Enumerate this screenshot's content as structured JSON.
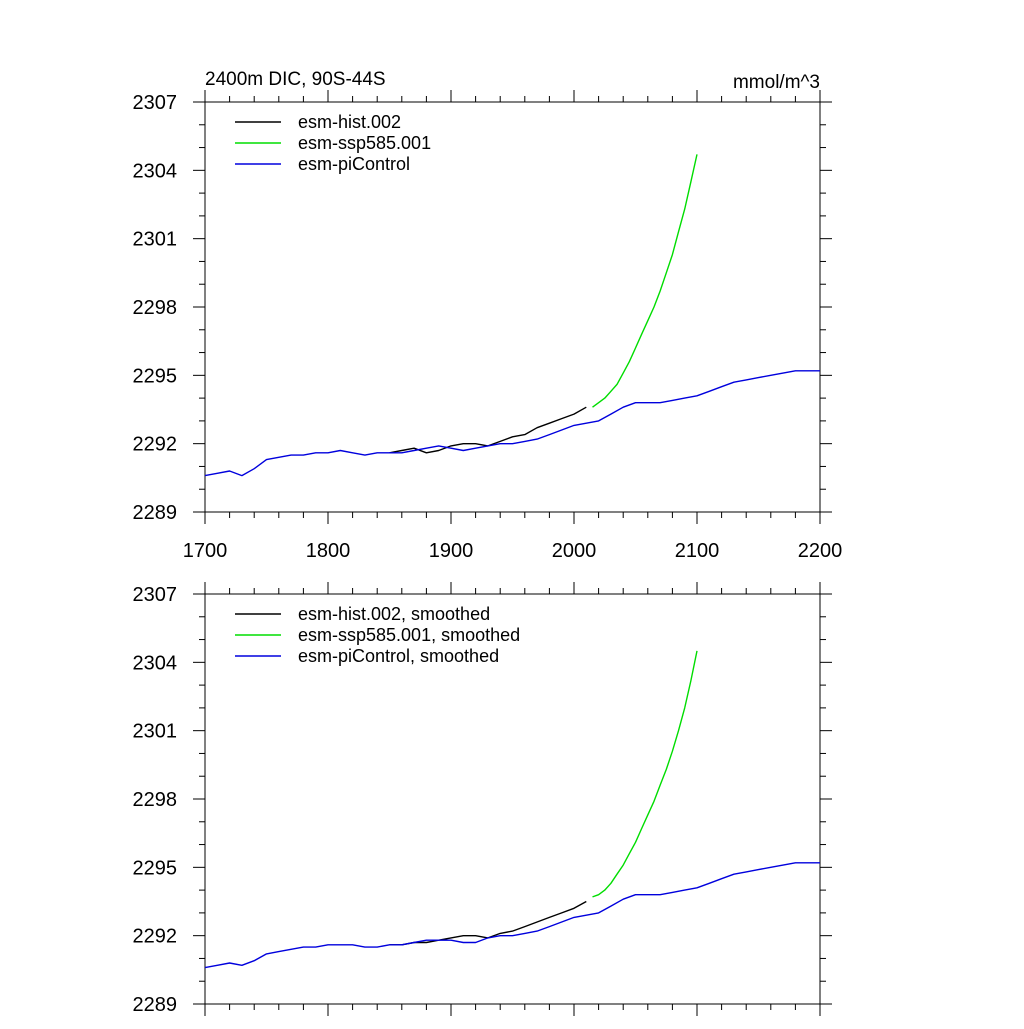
{
  "chart_data": [
    {
      "type": "line",
      "title": "2400m DIC, 90S-44S",
      "units": "mmol/m^3",
      "xlim": [
        1700,
        2200
      ],
      "ylim": [
        2289,
        2307
      ],
      "xticks": [
        1700,
        1800,
        1900,
        2000,
        2100,
        2200
      ],
      "xtick_labels": [
        "1700",
        "1800",
        "1900",
        "2000",
        "2100",
        "2200"
      ],
      "yticks": [
        2289,
        2292,
        2295,
        2298,
        2301,
        2304,
        2307
      ],
      "ytick_labels": [
        "2289",
        "2292",
        "2295",
        "2298",
        "2301",
        "2304",
        "2307"
      ],
      "legend_position": "top-left",
      "series": [
        {
          "name": "esm-hist.002",
          "color": "#000000",
          "x": [
            1850,
            1860,
            1870,
            1880,
            1890,
            1900,
            1910,
            1920,
            1930,
            1940,
            1950,
            1960,
            1970,
            1980,
            1990,
            2000,
            2010
          ],
          "y": [
            2291.6,
            2291.7,
            2291.8,
            2291.6,
            2291.7,
            2291.9,
            2292.0,
            2292.0,
            2291.9,
            2292.1,
            2292.3,
            2292.4,
            2292.7,
            2292.9,
            2293.1,
            2293.3,
            2293.6
          ]
        },
        {
          "name": "esm-ssp585.001",
          "color": "#00dd00",
          "x": [
            2015,
            2020,
            2025,
            2030,
            2035,
            2040,
            2045,
            2050,
            2055,
            2060,
            2065,
            2070,
            2075,
            2080,
            2085,
            2090,
            2095,
            2100
          ],
          "y": [
            2293.6,
            2293.8,
            2294.0,
            2294.3,
            2294.6,
            2295.1,
            2295.6,
            2296.2,
            2296.8,
            2297.4,
            2298.0,
            2298.7,
            2299.5,
            2300.3,
            2301.3,
            2302.3,
            2303.5,
            2304.7
          ]
        },
        {
          "name": "esm-piControl",
          "color": "#0000dd",
          "x": [
            1700,
            1710,
            1720,
            1730,
            1740,
            1750,
            1760,
            1770,
            1780,
            1790,
            1800,
            1810,
            1820,
            1830,
            1840,
            1850,
            1860,
            1870,
            1880,
            1890,
            1900,
            1910,
            1920,
            1930,
            1940,
            1950,
            1960,
            1970,
            1980,
            1990,
            2000,
            2010,
            2020,
            2030,
            2040,
            2050,
            2060,
            2070,
            2080,
            2090,
            2100,
            2110,
            2120,
            2130,
            2140,
            2150,
            2160,
            2170,
            2180,
            2190,
            2200
          ],
          "y": [
            2290.6,
            2290.7,
            2290.8,
            2290.6,
            2290.9,
            2291.3,
            2291.4,
            2291.5,
            2291.5,
            2291.6,
            2291.6,
            2291.7,
            2291.6,
            2291.5,
            2291.6,
            2291.6,
            2291.6,
            2291.7,
            2291.8,
            2291.9,
            2291.8,
            2291.7,
            2291.8,
            2291.9,
            2292.0,
            2292.0,
            2292.1,
            2292.2,
            2292.4,
            2292.6,
            2292.8,
            2292.9,
            2293.0,
            2293.3,
            2293.6,
            2293.8,
            2293.8,
            2293.8,
            2293.9,
            2294.0,
            2294.1,
            2294.3,
            2294.5,
            2294.7,
            2294.8,
            2294.9,
            2295.0,
            2295.1,
            2295.2,
            2295.2,
            2295.2
          ]
        }
      ]
    },
    {
      "type": "line",
      "title": "",
      "units": "",
      "xlim": [
        1700,
        2200
      ],
      "ylim": [
        2289,
        2307
      ],
      "xticks": [
        1700,
        1800,
        1900,
        2000,
        2100,
        2200
      ],
      "xtick_labels": [],
      "yticks": [
        2289,
        2292,
        2295,
        2298,
        2301,
        2304,
        2307
      ],
      "ytick_labels": [
        "2289",
        "2292",
        "2295",
        "2298",
        "2301",
        "2304",
        "2307"
      ],
      "legend_position": "top-left",
      "series": [
        {
          "name": "esm-hist.002, smoothed",
          "color": "#000000",
          "x": [
            1850,
            1860,
            1870,
            1880,
            1890,
            1900,
            1910,
            1920,
            1930,
            1940,
            1950,
            1960,
            1970,
            1980,
            1990,
            2000,
            2010
          ],
          "y": [
            2291.6,
            2291.6,
            2291.7,
            2291.7,
            2291.8,
            2291.9,
            2292.0,
            2292.0,
            2291.9,
            2292.1,
            2292.2,
            2292.4,
            2292.6,
            2292.8,
            2293.0,
            2293.2,
            2293.5
          ]
        },
        {
          "name": "esm-ssp585.001, smoothed",
          "color": "#00dd00",
          "x": [
            2015,
            2020,
            2025,
            2030,
            2035,
            2040,
            2045,
            2050,
            2055,
            2060,
            2065,
            2070,
            2075,
            2080,
            2085,
            2090,
            2095,
            2100
          ],
          "y": [
            2293.7,
            2293.8,
            2294.0,
            2294.3,
            2294.7,
            2295.1,
            2295.6,
            2296.1,
            2296.7,
            2297.3,
            2297.9,
            2298.6,
            2299.3,
            2300.1,
            2301.0,
            2302.0,
            2303.2,
            2304.5
          ]
        },
        {
          "name": "esm-piControl, smoothed",
          "color": "#0000dd",
          "x": [
            1700,
            1710,
            1720,
            1730,
            1740,
            1750,
            1760,
            1770,
            1780,
            1790,
            1800,
            1810,
            1820,
            1830,
            1840,
            1850,
            1860,
            1870,
            1880,
            1890,
            1900,
            1910,
            1920,
            1930,
            1940,
            1950,
            1960,
            1970,
            1980,
            1990,
            2000,
            2010,
            2020,
            2030,
            2040,
            2050,
            2060,
            2070,
            2080,
            2090,
            2100,
            2110,
            2120,
            2130,
            2140,
            2150,
            2160,
            2170,
            2180,
            2190,
            2200
          ],
          "y": [
            2290.6,
            2290.7,
            2290.8,
            2290.7,
            2290.9,
            2291.2,
            2291.3,
            2291.4,
            2291.5,
            2291.5,
            2291.6,
            2291.6,
            2291.6,
            2291.5,
            2291.5,
            2291.6,
            2291.6,
            2291.7,
            2291.8,
            2291.8,
            2291.8,
            2291.7,
            2291.7,
            2291.9,
            2292.0,
            2292.0,
            2292.1,
            2292.2,
            2292.4,
            2292.6,
            2292.8,
            2292.9,
            2293.0,
            2293.3,
            2293.6,
            2293.8,
            2293.8,
            2293.8,
            2293.9,
            2294.0,
            2294.1,
            2294.3,
            2294.5,
            2294.7,
            2294.8,
            2294.9,
            2295.0,
            2295.1,
            2295.2,
            2295.2,
            2295.2
          ]
        }
      ]
    }
  ]
}
